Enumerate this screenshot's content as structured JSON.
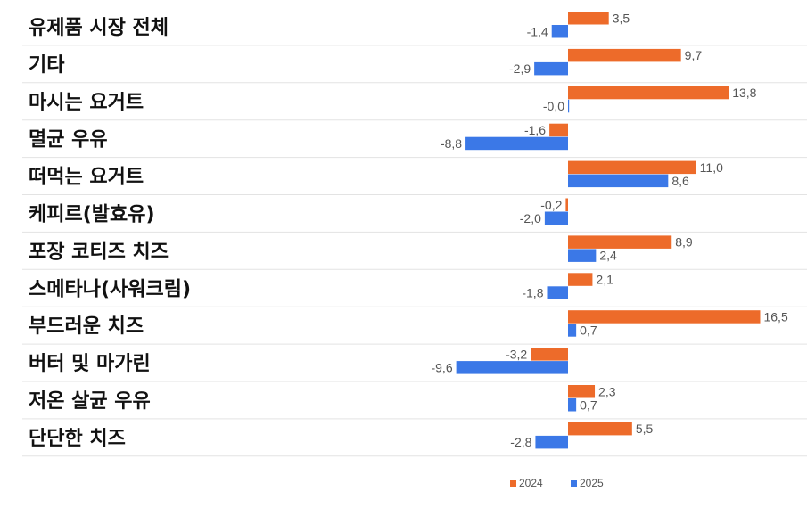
{
  "chart_data": {
    "type": "bar",
    "orientation": "horizontal",
    "categories": [
      "유제품 시장 전체",
      "기타",
      "마시는 요거트",
      "멸균 우유",
      "떠먹는 요거트",
      "케피르(발효유)",
      "포장 코티즈 치즈",
      "스메타나(사워크림)",
      "부드러운 치즈",
      "버터 및 마가린",
      "저온 살균 우유",
      "단단한 치즈"
    ],
    "series": [
      {
        "name": "2024",
        "color": "#ed6b2a",
        "values": [
          3.5,
          9.7,
          13.8,
          -1.6,
          11.0,
          -0.2,
          8.9,
          2.1,
          16.5,
          -3.2,
          2.3,
          5.5
        ],
        "labels": [
          "3,5",
          "9,7",
          "13,8",
          "-1,6",
          "11,0",
          "-0,2",
          "8,9",
          "2,1",
          "16,5",
          "-3,2",
          "2,3",
          "5,5"
        ]
      },
      {
        "name": "2025",
        "color": "#3b78e7",
        "values": [
          -1.4,
          -2.9,
          -0.0,
          -8.8,
          8.6,
          -2.0,
          2.4,
          -1.8,
          0.7,
          -9.6,
          0.7,
          -2.8
        ],
        "labels": [
          "-1,4",
          "-2,9",
          "-0,0",
          "-8,8",
          "8,6",
          "-2,0",
          "2,4",
          "-1,8",
          "0,7",
          "-9,6",
          "0,7",
          "-2,8"
        ]
      }
    ],
    "legend": "bottom",
    "grid": "horizontal row separators"
  }
}
